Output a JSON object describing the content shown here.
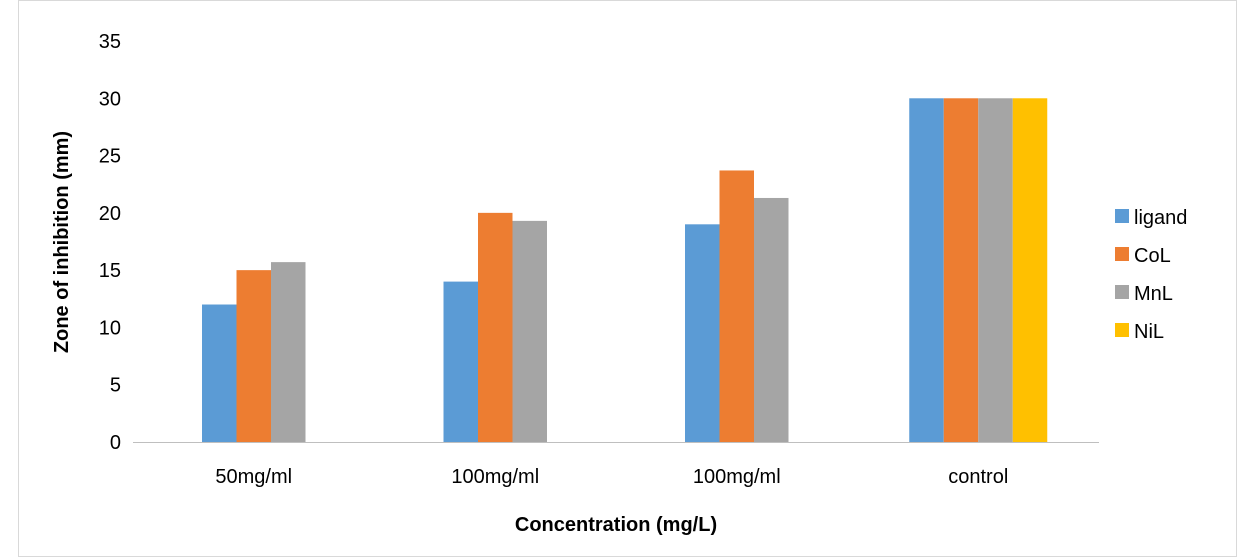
{
  "chart_data": {
    "type": "bar",
    "title": "",
    "xlabel": "Concentration (mg/L)",
    "ylabel": "Zone of inhibition (mm)",
    "ylim": [
      0,
      35
    ],
    "ytick_step": 5,
    "yticks": [
      "0",
      "5",
      "10",
      "15",
      "20",
      "25",
      "30",
      "35"
    ],
    "grid": false,
    "legend_position": "right",
    "categories": [
      "50mg/ml",
      "100mg/ml",
      "100mg/ml",
      "control"
    ],
    "series": [
      {
        "name": "ligand",
        "color": "#5b9bd5",
        "values": [
          12,
          14,
          19,
          30
        ]
      },
      {
        "name": "CoL",
        "color": "#ed7d31",
        "values": [
          15,
          20,
          23.7,
          30
        ]
      },
      {
        "name": "MnL",
        "color": "#a5a5a5",
        "values": [
          15.7,
          19.3,
          21.3,
          30
        ]
      },
      {
        "name": "NiL",
        "color": "#ffc000",
        "values": [
          null,
          null,
          null,
          30
        ]
      }
    ]
  }
}
